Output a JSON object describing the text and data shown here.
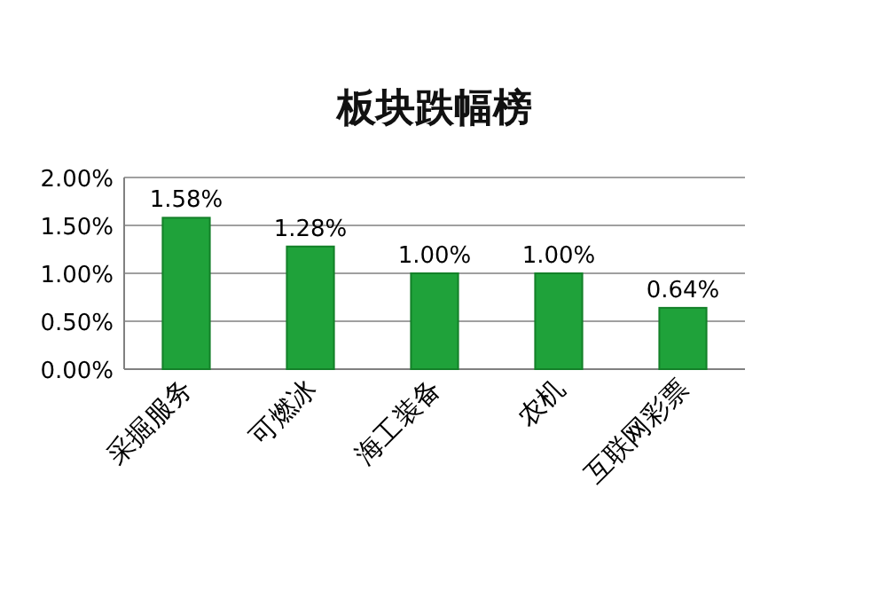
{
  "chart_data": {
    "type": "bar",
    "title": "板块跌幅榜",
    "categories": [
      "采掘服务",
      "可燃冰",
      "海工装备",
      "农机",
      "互联网彩票"
    ],
    "values": [
      1.58,
      1.28,
      1.0,
      1.0,
      0.64
    ],
    "value_labels": [
      "1.58%",
      "1.28%",
      "1.00%",
      "1.00%",
      "0.64%"
    ],
    "color": "#1fa23a",
    "ylim": [
      0,
      2
    ],
    "yticks": [
      {
        "value": 0,
        "label": "0.00%"
      },
      {
        "value": 0.5,
        "label": "0.50%"
      },
      {
        "value": 1,
        "label": "1.00%"
      },
      {
        "value": 1.5,
        "label": "1.50%"
      },
      {
        "value": 2,
        "label": "2.00%"
      }
    ],
    "grid": "y"
  }
}
